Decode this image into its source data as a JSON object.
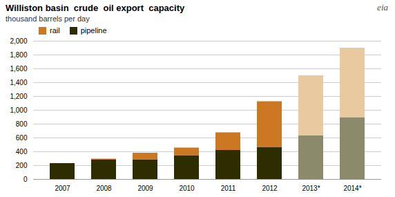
{
  "chart_data": {
    "type": "bar",
    "title": "Williston basin  crude  oil export  capacity",
    "subtitle": "thousand barrels per day",
    "annotations": [
      "eia"
    ],
    "categories": [
      "2007",
      "2008",
      "2009",
      "2010",
      "2011",
      "2012",
      "2013*",
      "2014*"
    ],
    "series": [
      {
        "name": "pipeline",
        "color": "#2d2d00",
        "colors": [
          "#2d2d00",
          "#2d2d00",
          "#2d2d00",
          "#2d2d00",
          "#2d2d00",
          "#2d2d00",
          "#8b8b6b",
          "#8b8b6b"
        ],
        "values": [
          230,
          280,
          285,
          345,
          420,
          465,
          630,
          895
        ]
      },
      {
        "name": "rail",
        "color": "#cc7722",
        "colors": [
          "#cc7722",
          "#cc7722",
          "#cc7722",
          "#cc7722",
          "#cc7722",
          "#cc7722",
          "#e8c9a0",
          "#e8c9a0"
        ],
        "values": [
          0,
          15,
          95,
          110,
          255,
          660,
          870,
          1005
        ]
      }
    ],
    "stacked": true,
    "ylim": [
      0,
      2000
    ],
    "yticks": [
      0,
      200,
      400,
      600,
      800,
      {
        "value": 1000,
        "label": "1,000"
      },
      {
        "value": 1200,
        "label": "1,200"
      },
      {
        "value": 1400,
        "label": "1,400"
      },
      {
        "value": 1600,
        "label": "1,600"
      },
      {
        "value": 1800,
        "label": "1,800"
      },
      {
        "value": 2000,
        "label": "2,000"
      }
    ],
    "grid": true,
    "legend": "top-left"
  }
}
